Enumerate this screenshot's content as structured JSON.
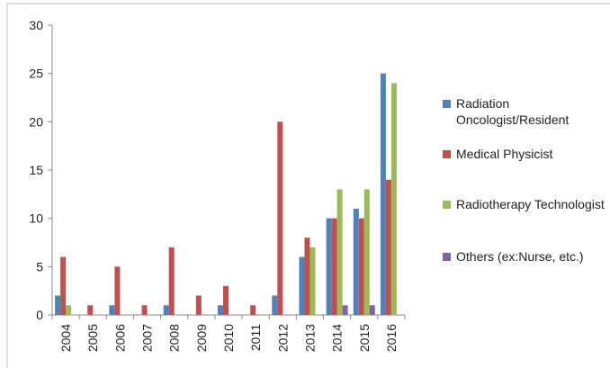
{
  "chart_data": {
    "type": "bar",
    "categories": [
      "2004",
      "2005",
      "2006",
      "2007",
      "2008",
      "2009",
      "2010",
      "2011",
      "2012",
      "2013",
      "2014",
      "2015",
      "2016"
    ],
    "series": [
      {
        "name": "Radiation Oncologist/Resident",
        "color": "#4f81bd",
        "values": [
          2,
          0,
          1,
          0,
          1,
          0,
          1,
          0,
          2,
          6,
          10,
          11,
          25
        ]
      },
      {
        "name": "Medical Physicist",
        "color": "#c0504d",
        "values": [
          6,
          1,
          5,
          1,
          7,
          2,
          3,
          1,
          20,
          8,
          10,
          10,
          14
        ]
      },
      {
        "name": "Radiotherapy Technologist",
        "color": "#9bbb59",
        "values": [
          1,
          0,
          0,
          0,
          0,
          0,
          0,
          0,
          0,
          7,
          13,
          13,
          24
        ]
      },
      {
        "name": "Others (ex:Nurse, etc.)",
        "color": "#8064a2",
        "values": [
          0,
          0,
          0,
          0,
          0,
          0,
          0,
          0,
          0,
          0,
          1,
          1,
          0
        ]
      }
    ],
    "ylim": [
      0,
      30
    ],
    "yticks": [
      0,
      5,
      10,
      15,
      20,
      25,
      30
    ],
    "grid": false,
    "legend": "right"
  }
}
